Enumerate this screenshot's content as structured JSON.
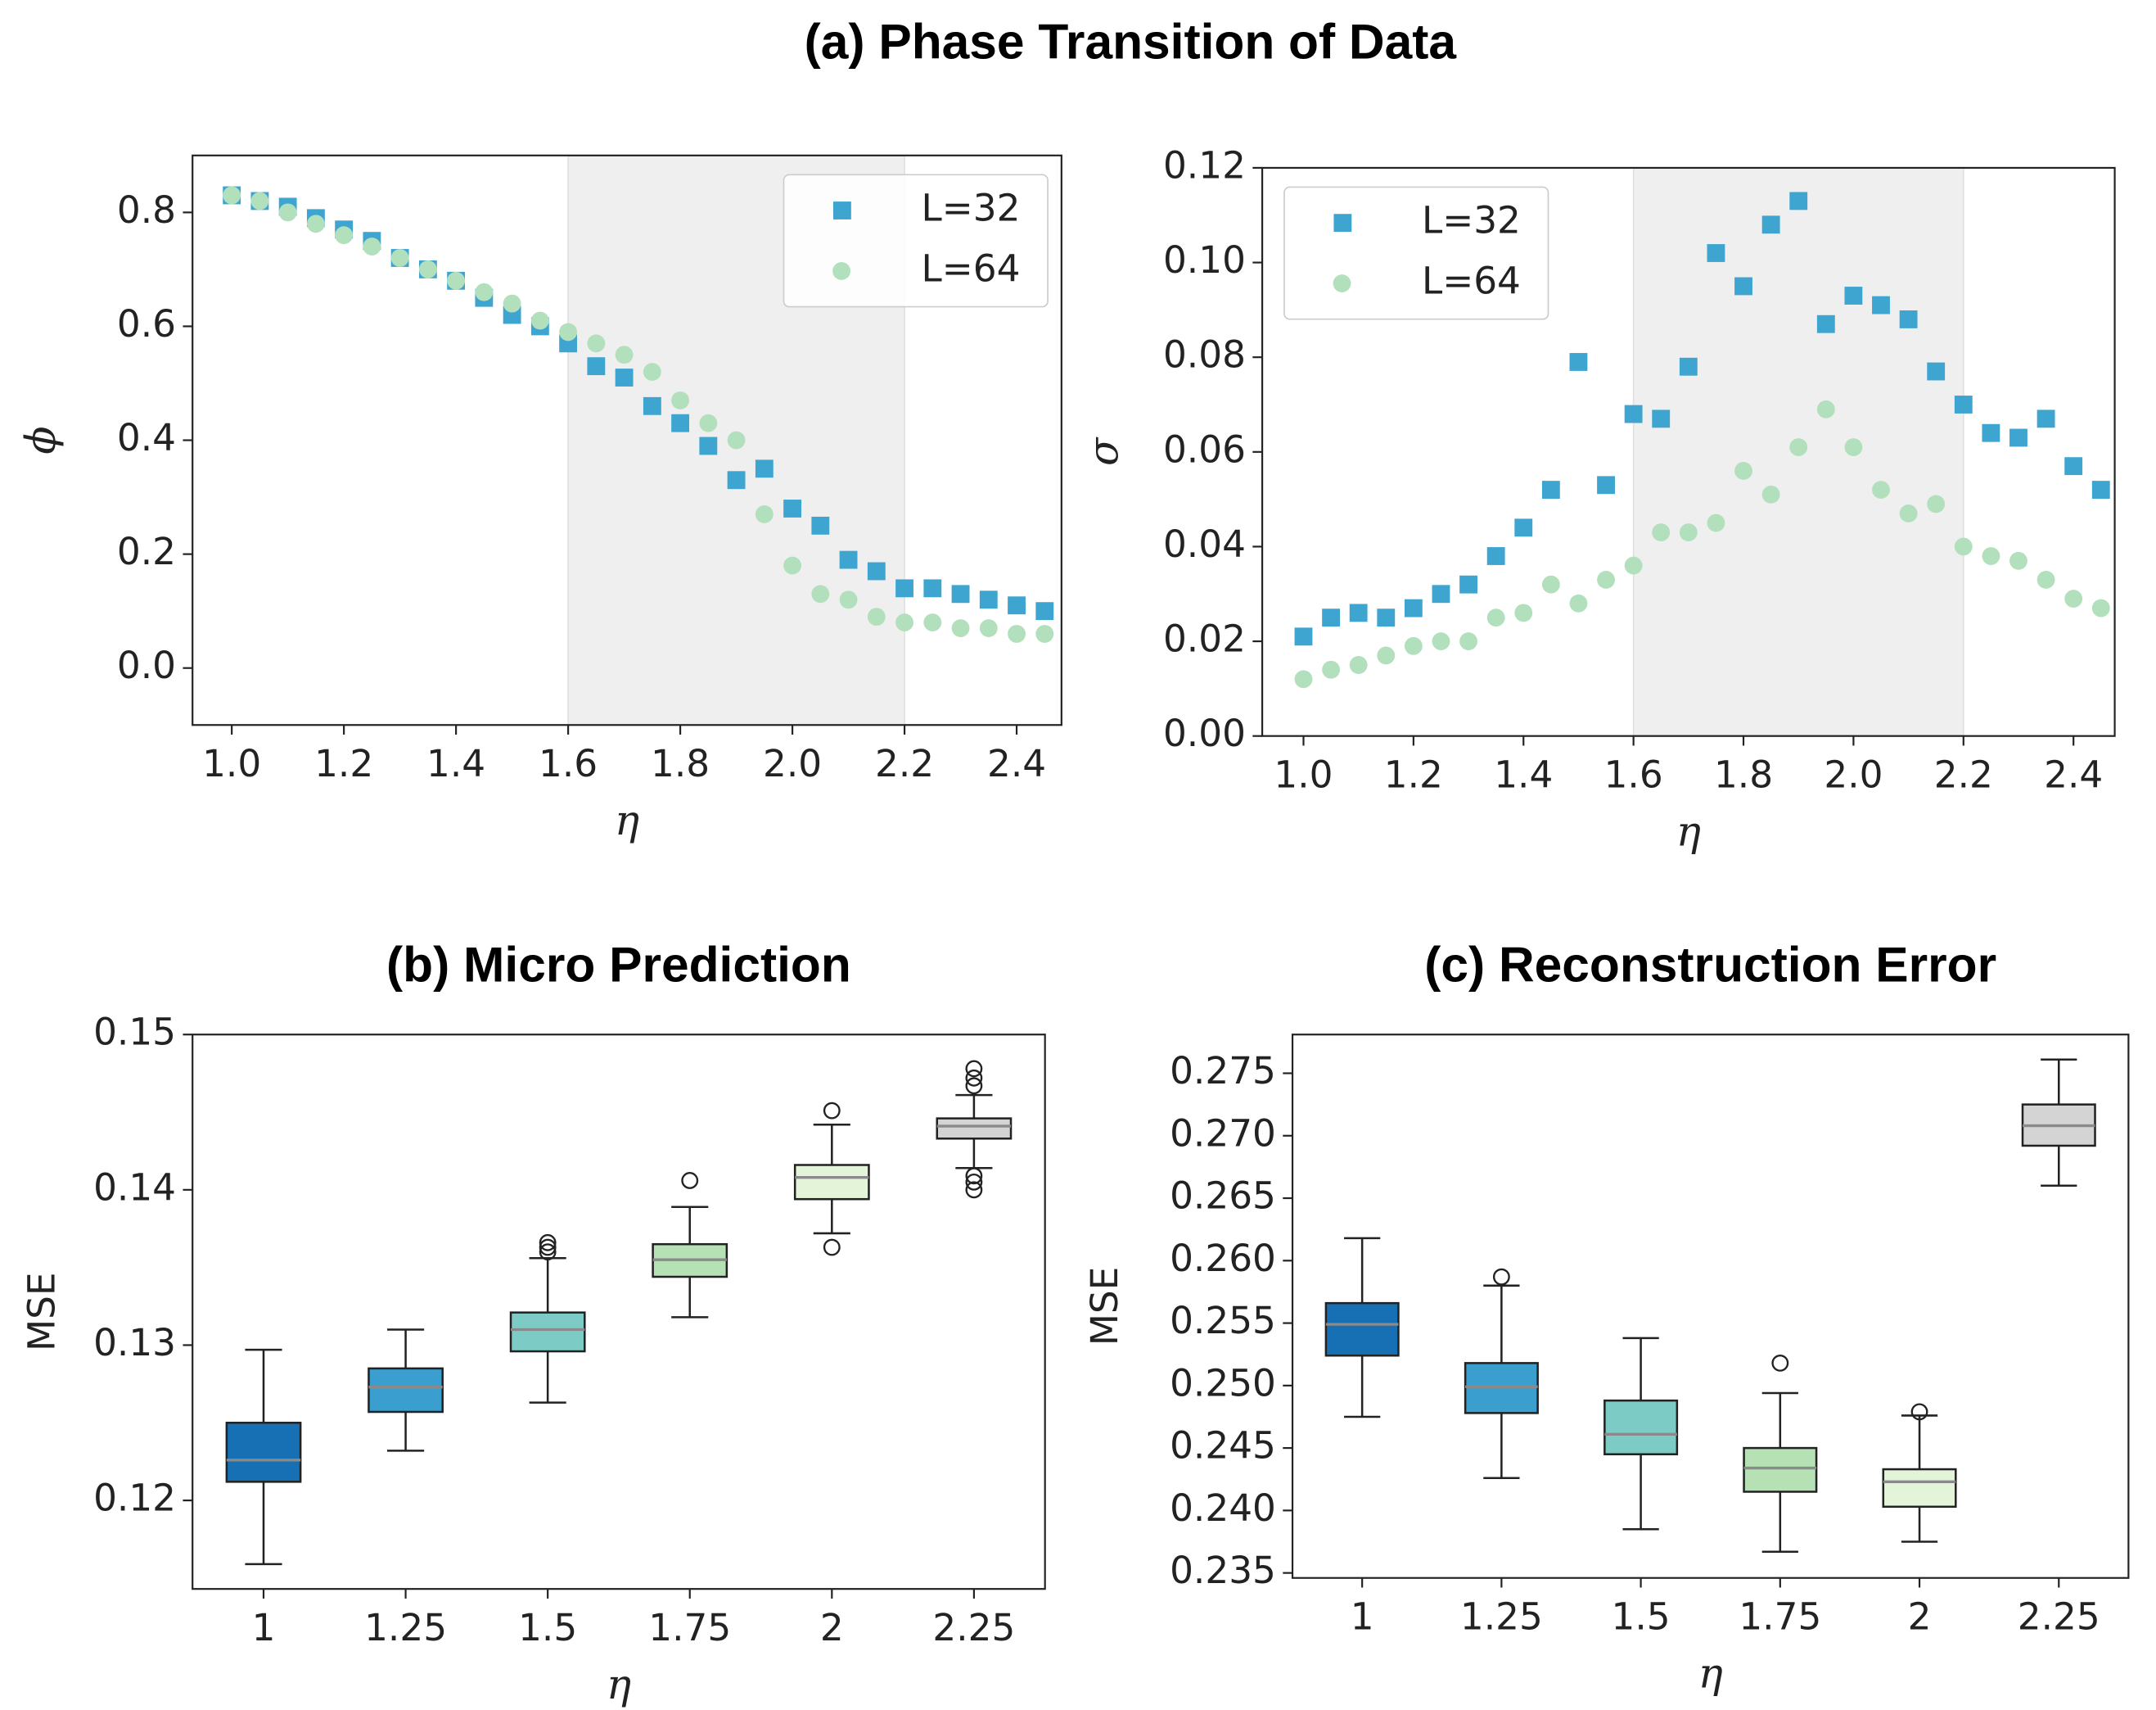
{
  "title": "(a) Phase Transition of Data",
  "chart_data": [
    {
      "type": "scatter",
      "xlabel": "η",
      "ylabel": "ϕ",
      "legend": "upper right",
      "span": [
        1.6,
        2.2
      ],
      "xlim": [
        0.93,
        2.48
      ],
      "ylim": [
        -0.1,
        0.9
      ],
      "xticks": [
        {
          "value": 1,
          "label": "1.0"
        },
        1.2,
        1.4,
        1.6,
        1.8,
        {
          "value": 2,
          "label": "2.0"
        },
        2.2,
        2.4
      ],
      "yticks": [
        {
          "value": 0,
          "label": "0.0"
        },
        0.2,
        0.4,
        0.6,
        0.8
      ],
      "x": [
        1.0,
        1.05,
        1.1,
        1.15,
        1.2,
        1.25,
        1.3,
        1.35,
        1.4,
        1.45,
        1.5,
        1.55,
        1.6,
        1.65,
        1.7,
        1.75,
        1.8,
        1.85,
        1.9,
        1.95,
        2.0,
        2.05,
        2.1,
        2.15,
        2.2,
        2.25,
        2.3,
        2.35,
        2.4,
        2.45
      ],
      "series": [
        {
          "name": "L=32",
          "color": "#3ea4d0",
          "marker": "square",
          "values": [
            0.83,
            0.82,
            0.81,
            0.79,
            0.77,
            0.75,
            0.72,
            0.7,
            0.68,
            0.65,
            0.62,
            0.6,
            0.57,
            0.53,
            0.51,
            0.46,
            0.43,
            0.39,
            0.33,
            0.35,
            0.28,
            0.25,
            0.19,
            0.17,
            0.14,
            0.14,
            0.13,
            0.12,
            0.11,
            0.1
          ]
        },
        {
          "name": "L=64",
          "color": "#b2e0bc",
          "marker": "circle",
          "values": [
            0.83,
            0.82,
            0.8,
            0.78,
            0.76,
            0.74,
            0.72,
            0.7,
            0.68,
            0.66,
            0.64,
            0.61,
            0.59,
            0.57,
            0.55,
            0.52,
            0.47,
            0.43,
            0.4,
            0.27,
            0.18,
            0.13,
            0.12,
            0.09,
            0.08,
            0.08,
            0.07,
            0.07,
            0.06,
            0.06
          ]
        }
      ]
    },
    {
      "type": "scatter",
      "xlabel": "η",
      "ylabel": "σ",
      "legend": "upper left",
      "span": [
        1.6,
        2.2
      ],
      "xlim": [
        0.925,
        2.475
      ],
      "ylim": [
        0,
        0.12
      ],
      "xticks": [
        {
          "value": 1,
          "label": "1.0"
        },
        1.2,
        1.4,
        1.6,
        1.8,
        {
          "value": 2,
          "label": "2.0"
        },
        2.2,
        2.4
      ],
      "yticks": [
        {
          "value": 0,
          "label": "0.00"
        },
        0.02,
        0.04,
        0.06,
        0.08,
        {
          "value": 0.1,
          "label": "0.10"
        },
        0.12
      ],
      "x": [
        1.0,
        1.05,
        1.1,
        1.15,
        1.2,
        1.25,
        1.3,
        1.35,
        1.4,
        1.45,
        1.5,
        1.55,
        1.6,
        1.65,
        1.7,
        1.75,
        1.8,
        1.85,
        1.9,
        1.95,
        2.0,
        2.05,
        2.1,
        2.15,
        2.2,
        2.25,
        2.3,
        2.35,
        2.4,
        2.45
      ],
      "series": [
        {
          "name": "L=32",
          "color": "#3ea4d0",
          "marker": "square",
          "values": [
            0.021,
            0.025,
            0.026,
            0.025,
            0.027,
            0.03,
            0.032,
            0.038,
            0.044,
            0.052,
            0.079,
            0.053,
            0.068,
            0.067,
            0.078,
            0.102,
            0.095,
            0.108,
            0.113,
            0.087,
            0.093,
            0.091,
            0.088,
            0.077,
            0.07,
            0.064,
            0.063,
            0.067,
            0.057,
            0.052
          ]
        },
        {
          "name": "L=64",
          "color": "#b2e0bc",
          "marker": "circle",
          "values": [
            0.012,
            0.014,
            0.015,
            0.017,
            0.019,
            0.02,
            0.02,
            0.025,
            0.026,
            0.032,
            0.028,
            0.033,
            0.036,
            0.043,
            0.043,
            0.045,
            0.056,
            0.051,
            0.061,
            0.069,
            0.061,
            0.052,
            0.047,
            0.049,
            0.04,
            0.038,
            0.037,
            0.033,
            0.029,
            0.027
          ]
        }
      ]
    },
    {
      "type": "box",
      "title": "(b) Micro Prediction",
      "xlabel": "η",
      "ylabel": "MSE",
      "ylim": [
        0.1143,
        0.15
      ],
      "yticks": [
        0.12,
        0.13,
        0.14,
        0.15
      ],
      "categories": [
        "1",
        "1.25",
        "1.5",
        "1.75",
        "2",
        "2.25"
      ],
      "colors": [
        "#1770b3",
        "#3a9fcf",
        "#7dcbc5",
        "#b5e1b5",
        "#e3f4d8",
        "#d4d4d4"
      ],
      "boxes": [
        {
          "whislo": 0.1159,
          "q1": 0.1212,
          "med": 0.1226,
          "q3": 0.125,
          "whishi": 0.1297,
          "fliers": []
        },
        {
          "whislo": 0.1232,
          "q1": 0.1257,
          "med": 0.1273,
          "q3": 0.1285,
          "whishi": 0.131,
          "fliers": []
        },
        {
          "whislo": 0.1263,
          "q1": 0.1296,
          "med": 0.131,
          "q3": 0.1321,
          "whishi": 0.1356,
          "fliers": [
            0.136,
            0.1363,
            0.1366
          ]
        },
        {
          "whislo": 0.1318,
          "q1": 0.1344,
          "med": 0.1355,
          "q3": 0.1365,
          "whishi": 0.1389,
          "fliers": [
            0.1406
          ]
        },
        {
          "whislo": 0.1372,
          "q1": 0.1394,
          "med": 0.1408,
          "q3": 0.1416,
          "whishi": 0.1442,
          "fliers": [
            0.1451,
            0.1363
          ]
        },
        {
          "whislo": 0.1414,
          "q1": 0.1433,
          "med": 0.1441,
          "q3": 0.1446,
          "whishi": 0.1461,
          "fliers": [
            0.1478,
            0.1472,
            0.1467,
            0.1409,
            0.1405,
            0.14
          ]
        }
      ]
    },
    {
      "type": "box",
      "title": "(c) Reconstruction Error",
      "xlabel": "η",
      "ylabel": "MSE",
      "ylim": [
        0.2346,
        0.2781
      ],
      "yticks": [
        0.235,
        {
          "value": 0.24,
          "label": "0.240"
        },
        0.245,
        {
          "value": 0.25,
          "label": "0.250"
        },
        0.255,
        {
          "value": 0.26,
          "label": "0.260"
        },
        0.265,
        {
          "value": 0.27,
          "label": "0.270"
        },
        0.275
      ],
      "categories": [
        "1",
        "1.25",
        "1.5",
        "1.75",
        "2",
        "2.25"
      ],
      "colors": [
        "#1770b3",
        "#3a9fcf",
        "#7dcbc5",
        "#b5e1b5",
        "#e3f4d8",
        "#d4d4d4"
      ],
      "boxes": [
        {
          "whislo": 0.2475,
          "q1": 0.2524,
          "med": 0.2549,
          "q3": 0.2566,
          "whishi": 0.2618,
          "fliers": []
        },
        {
          "whislo": 0.2426,
          "q1": 0.2478,
          "med": 0.2499,
          "q3": 0.2518,
          "whishi": 0.258,
          "fliers": [
            0.2587
          ]
        },
        {
          "whislo": 0.2385,
          "q1": 0.2445,
          "med": 0.2461,
          "q3": 0.2488,
          "whishi": 0.2538,
          "fliers": []
        },
        {
          "whislo": 0.2367,
          "q1": 0.2415,
          "med": 0.2434,
          "q3": 0.245,
          "whishi": 0.2494,
          "fliers": [
            0.2518
          ]
        },
        {
          "whislo": 0.2375,
          "q1": 0.2403,
          "med": 0.2423,
          "q3": 0.2433,
          "whishi": 0.2476,
          "fliers": [
            0.2479
          ]
        },
        {
          "whislo": 0.266,
          "q1": 0.2692,
          "med": 0.2708,
          "q3": 0.2725,
          "whishi": 0.2761,
          "fliers": []
        }
      ]
    }
  ]
}
